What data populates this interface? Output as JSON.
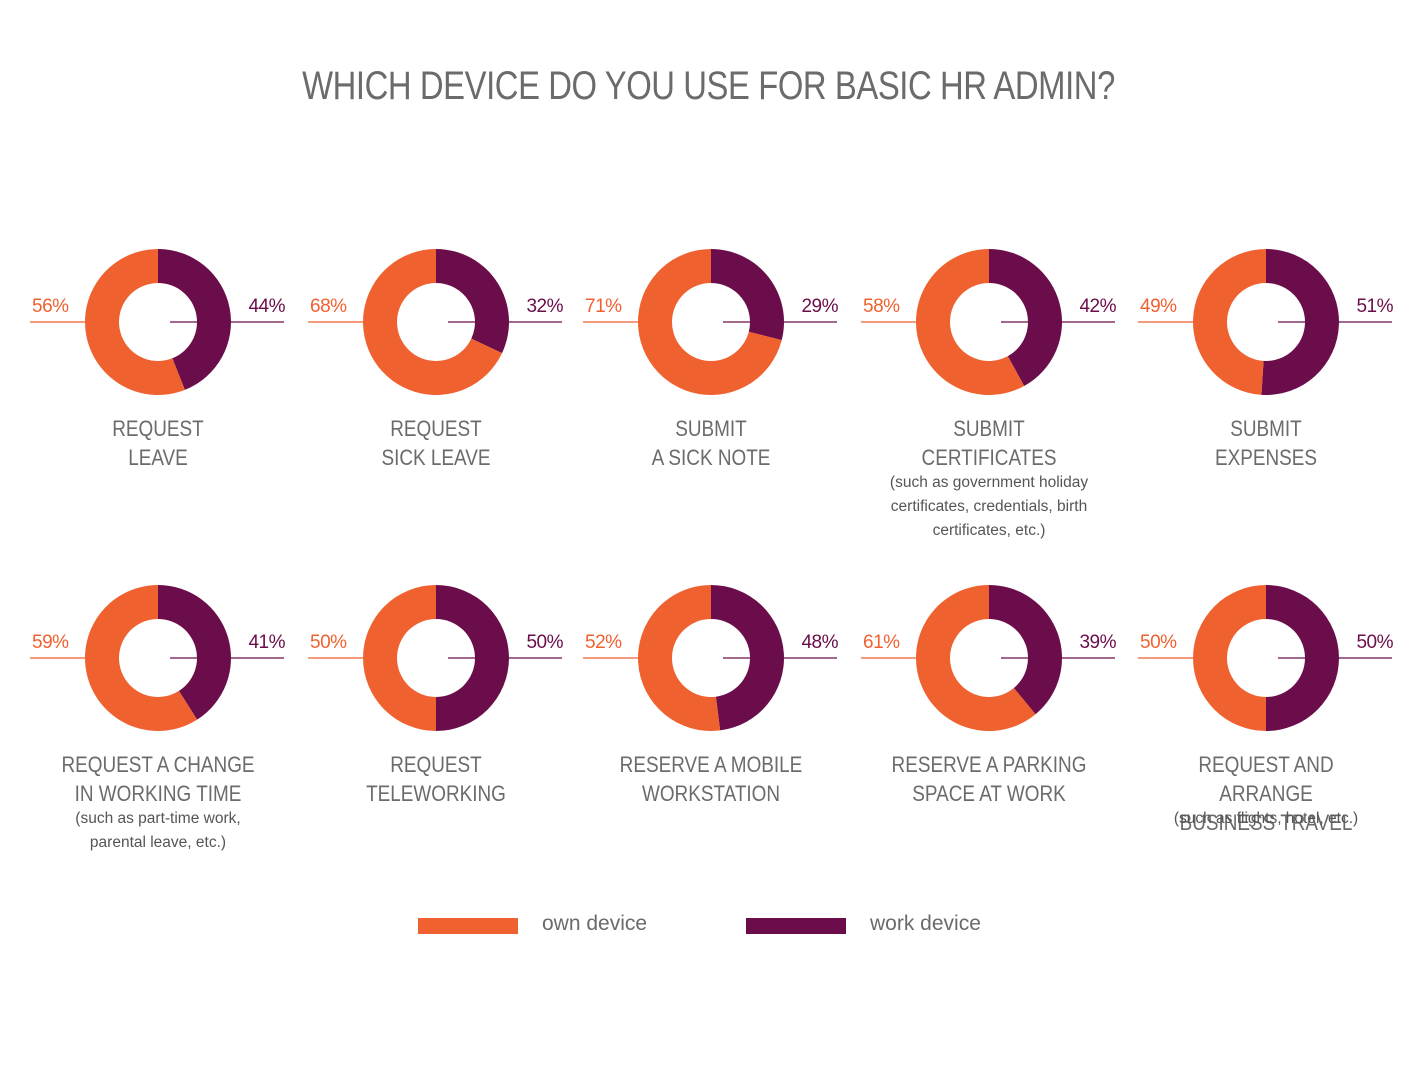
{
  "title": "WHICH DEVICE DO YOU USE FOR BASIC HR ADMIN?",
  "colors": {
    "own": "#f06130",
    "work": "#6b0d4a"
  },
  "legend": [
    {
      "label": "own device",
      "color": "#f06130"
    },
    {
      "label": "work device",
      "color": "#6b0d4a"
    }
  ],
  "chart_data": [
    {
      "type": "pie",
      "label": [
        "REQUEST",
        "LEAVE"
      ],
      "note": [],
      "own": 56,
      "work": 44,
      "own_label": "56%",
      "work_label": "44%"
    },
    {
      "type": "pie",
      "label": [
        "REQUEST",
        "SICK LEAVE"
      ],
      "note": [],
      "own": 68,
      "work": 32,
      "own_label": "68%",
      "work_label": "32%"
    },
    {
      "type": "pie",
      "label": [
        "SUBMIT",
        "A SICK NOTE"
      ],
      "note": [],
      "own": 71,
      "work": 29,
      "own_label": "71%",
      "work_label": "29%"
    },
    {
      "type": "pie",
      "label": [
        "SUBMIT",
        "CERTIFICATES"
      ],
      "note": [
        "(such as government holiday",
        "certificates, credentials, birth",
        "certificates, etc.)"
      ],
      "own": 58,
      "work": 42,
      "own_label": "58%",
      "work_label": "42%"
    },
    {
      "type": "pie",
      "label": [
        "SUBMIT",
        "EXPENSES"
      ],
      "note": [],
      "own": 49,
      "work": 51,
      "own_label": "49%",
      "work_label": "51%"
    },
    {
      "type": "pie",
      "label": [
        "REQUEST A CHANGE",
        "IN WORKING TIME"
      ],
      "note": [
        "(such as part-time work,",
        "parental leave, etc.)"
      ],
      "own": 59,
      "work": 41,
      "own_label": "59%",
      "work_label": "41%"
    },
    {
      "type": "pie",
      "label": [
        "REQUEST",
        "TELEWORKING"
      ],
      "note": [],
      "own": 50,
      "work": 50,
      "own_label": "50%",
      "work_label": "50%"
    },
    {
      "type": "pie",
      "label": [
        "RESERVE A MOBILE",
        "WORKSTATION"
      ],
      "note": [],
      "own": 52,
      "work": 48,
      "own_label": "52%",
      "work_label": "48%"
    },
    {
      "type": "pie",
      "label": [
        "RESERVE A PARKING",
        "SPACE AT WORK"
      ],
      "note": [],
      "own": 61,
      "work": 39,
      "own_label": "61%",
      "work_label": "39%"
    },
    {
      "type": "pie",
      "label": [
        "REQUEST AND ARRANGE",
        "BUSINESS TRAVEL"
      ],
      "note": [
        "(such as flights, hotel, etc.)"
      ],
      "own": 50,
      "work": 50,
      "own_label": "50%",
      "work_label": "50%"
    }
  ]
}
